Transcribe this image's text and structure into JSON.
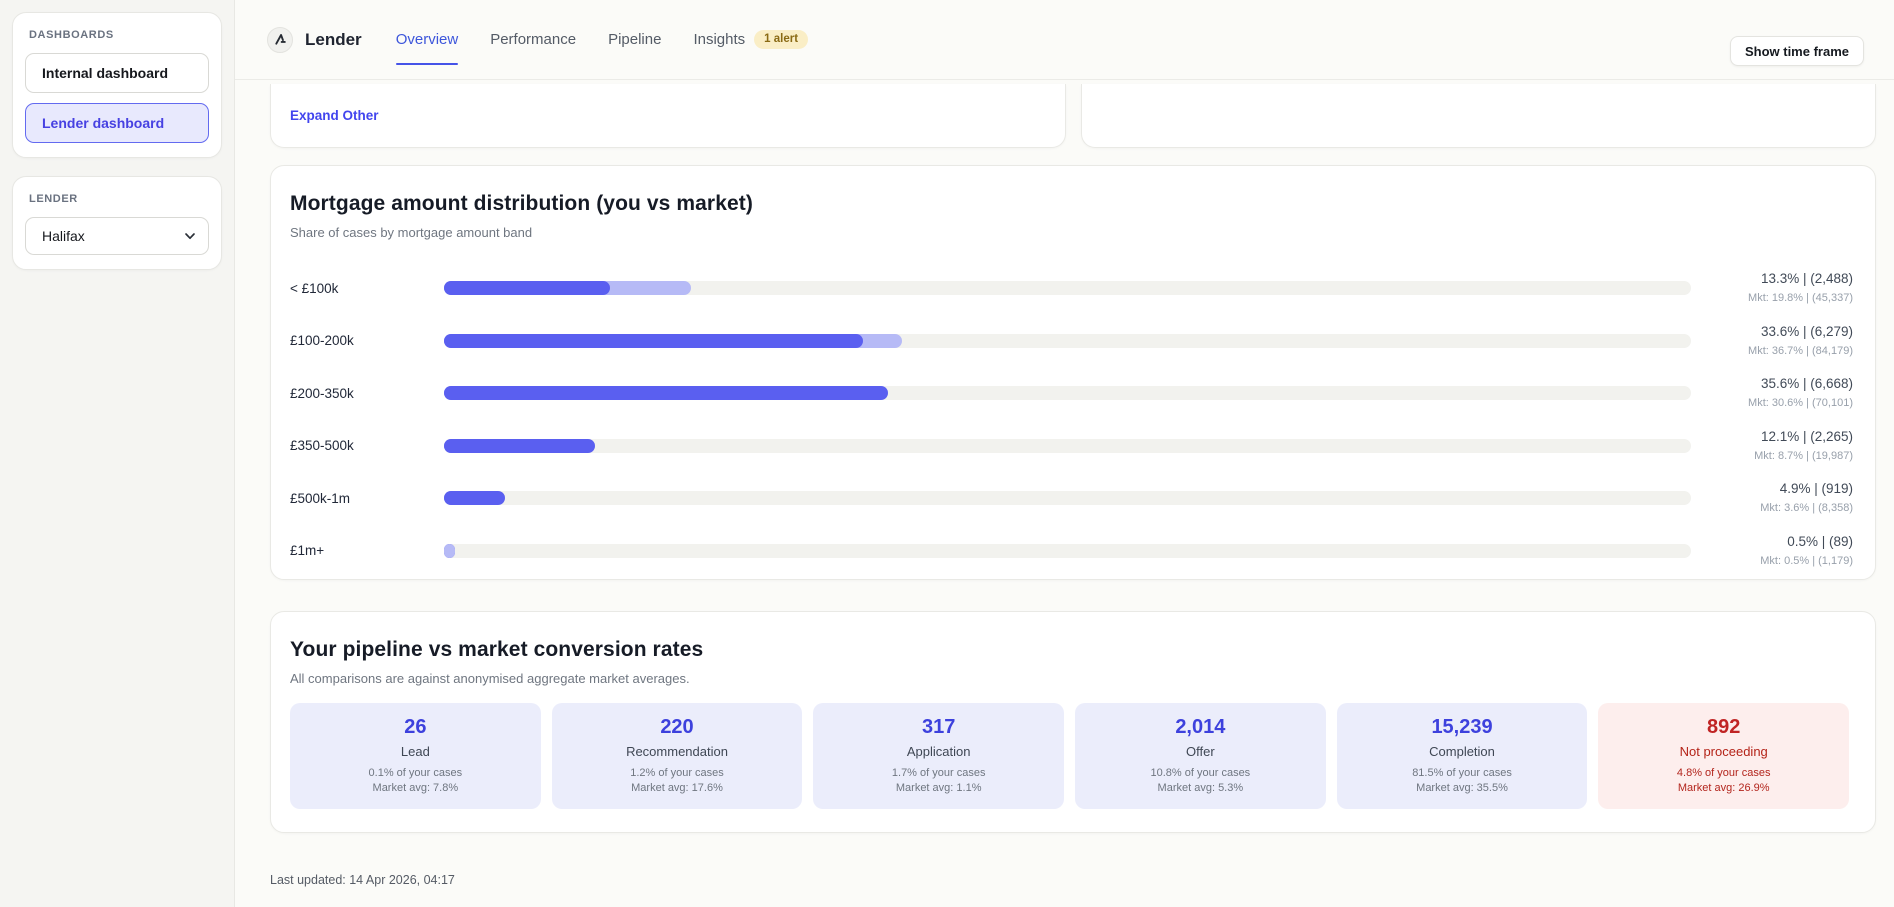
{
  "sidebar": {
    "dashboards_label": "DASHBOARDS",
    "items": [
      {
        "label": "Internal dashboard",
        "active": false
      },
      {
        "label": "Lender dashboard",
        "active": true
      }
    ],
    "lender_label": "LENDER",
    "lender_select_value": "Halifax"
  },
  "header": {
    "brand": "Lender",
    "tabs": [
      {
        "label": "Overview",
        "active": true
      },
      {
        "label": "Performance",
        "active": false
      },
      {
        "label": "Pipeline",
        "active": false
      },
      {
        "label": "Insights",
        "active": false,
        "badge": "1 alert"
      }
    ],
    "timeframe_button": "Show time frame"
  },
  "other_card": {
    "expand_link": "Expand Other"
  },
  "chart_data": {
    "type": "bar",
    "orientation": "horizontal",
    "title": "Mortgage amount distribution (you vs market)",
    "subtitle": "Share of cases by mortgage amount band",
    "categories": [
      "< £100k",
      "£100-200k",
      "£200-350k",
      "£350-500k",
      "£500k-1m",
      "£1m+"
    ],
    "series": [
      {
        "name": "You",
        "values_pct": [
          13.3,
          33.6,
          35.6,
          12.1,
          4.9,
          0.5
        ],
        "counts": [
          2488,
          6279,
          6668,
          2265,
          919,
          89
        ]
      },
      {
        "name": "Market",
        "values_pct": [
          19.8,
          36.7,
          30.6,
          8.7,
          3.6,
          0.5
        ],
        "counts": [
          45337,
          84179,
          70101,
          19987,
          8358,
          1179
        ]
      }
    ],
    "value_labels": [
      "13.3% | (2,488)",
      "33.6% | (6,279)",
      "35.6% | (6,668)",
      "12.1% | (2,265)",
      "4.9% | (919)",
      "0.5% | (89)"
    ],
    "market_labels": [
      "Mkt: 19.8% | (45,337)",
      "Mkt: 36.7% | (84,179)",
      "Mkt: 30.6% | (70,101)",
      "Mkt: 8.7% | (19,987)",
      "Mkt: 3.6% | (8,358)",
      "Mkt: 0.5% | (1,179)"
    ],
    "xlim": [
      0,
      100
    ],
    "legend_position": "none",
    "grid": false,
    "colors": {
      "you": "#5a5ff0",
      "market": "#b6baf6",
      "track": "#f2f2ee"
    }
  },
  "pipeline": {
    "title": "Your pipeline vs market conversion rates",
    "subtitle": "All comparisons are against anonymised aggregate market averages.",
    "cards": [
      {
        "value": "26",
        "label": "Lead",
        "share": "0.1% of your cases",
        "market": "Market avg: 7.8%",
        "theme": "indigo"
      },
      {
        "value": "220",
        "label": "Recommendation",
        "share": "1.2% of your cases",
        "market": "Market avg: 17.6%",
        "theme": "indigo"
      },
      {
        "value": "317",
        "label": "Application",
        "share": "1.7% of your cases",
        "market": "Market avg: 1.1%",
        "theme": "indigo"
      },
      {
        "value": "2,014",
        "label": "Offer",
        "share": "10.8% of your cases",
        "market": "Market avg: 5.3%",
        "theme": "indigo"
      },
      {
        "value": "15,239",
        "label": "Completion",
        "share": "81.5% of your cases",
        "market": "Market avg: 35.5%",
        "theme": "indigo"
      },
      {
        "value": "892",
        "label": "Not proceeding",
        "share": "4.8% of your cases",
        "market": "Market avg: 26.9%",
        "theme": "red"
      }
    ]
  },
  "footer": {
    "last_updated": "Last updated: 14 Apr 2026, 04:17"
  },
  "colors": {
    "accent_indigo": "#5a5ff0",
    "accent_light_indigo": "#b6baf6",
    "active_tab": "#3d56db",
    "link": "#4245ee",
    "stat_value": "#3d41dd",
    "stat_bg": "#ebedfb",
    "negative": "#c02424",
    "negative_bg": "#fdeeed",
    "badge_bg": "#faeec6",
    "badge_text": "#8a6a14"
  }
}
